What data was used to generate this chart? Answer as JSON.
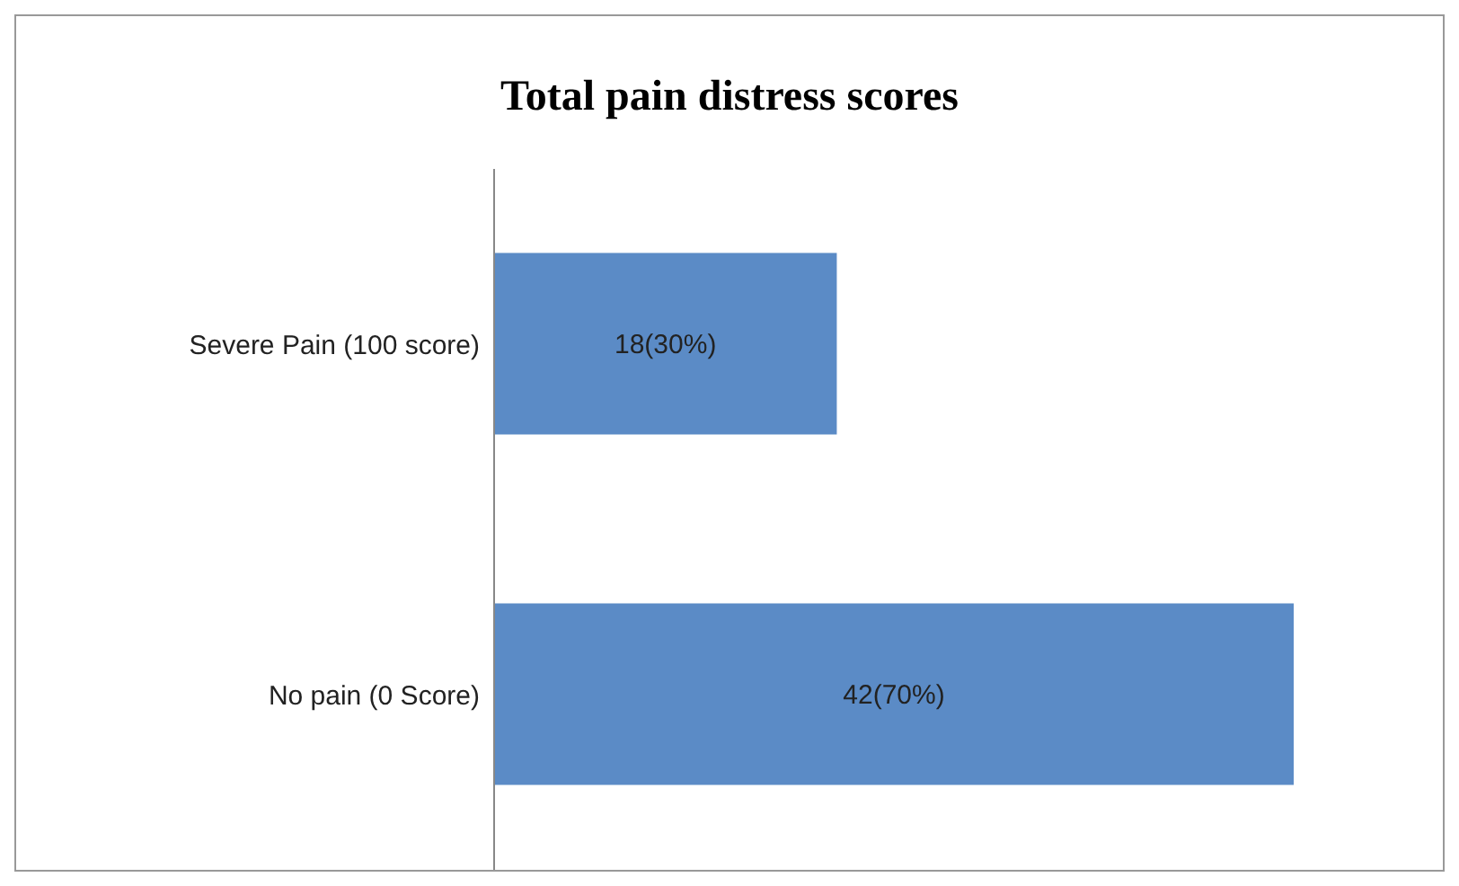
{
  "chart_data": {
    "type": "bar",
    "title": "Total pain distress scores",
    "orientation": "horizontal",
    "categories": [
      "Severe Pain (100 score)",
      "No pain (0 Score)"
    ],
    "values": [
      18,
      42
    ],
    "value_labels": [
      "18(30%)",
      "42(70%)"
    ],
    "color": "#5b8bc6"
  }
}
